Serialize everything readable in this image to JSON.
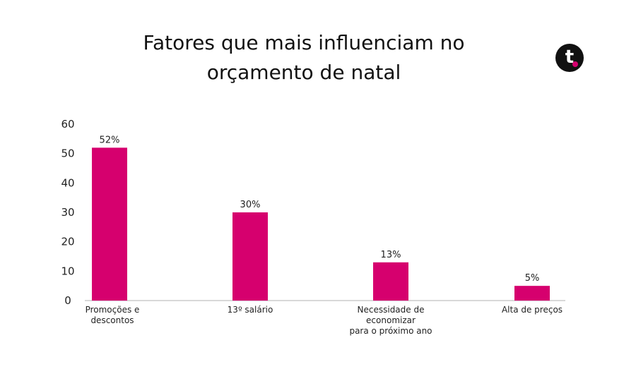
{
  "chart_data": {
    "type": "bar",
    "title": [
      "Fatores que mais influenciam no",
      "orçamento de natal"
    ],
    "categories": [
      [
        "Promoções e",
        "descontos"
      ],
      [
        "13º salário"
      ],
      [
        "Necessidade de",
        "economizar",
        "para o próximo ano"
      ],
      [
        "Alta de preços"
      ]
    ],
    "values": [
      52,
      30,
      13,
      5
    ],
    "data_labels": [
      "52%",
      "30%",
      "13%",
      "5%"
    ],
    "ylim": [
      0,
      60
    ],
    "yticks": [
      0,
      10,
      20,
      30,
      40,
      50,
      60
    ],
    "bar_color": "#d6006e",
    "axis_color": "#cccccc",
    "grid": false
  },
  "logo": {
    "letter": "t",
    "bg_color": "#111111",
    "dot_color": "#d6006e"
  }
}
